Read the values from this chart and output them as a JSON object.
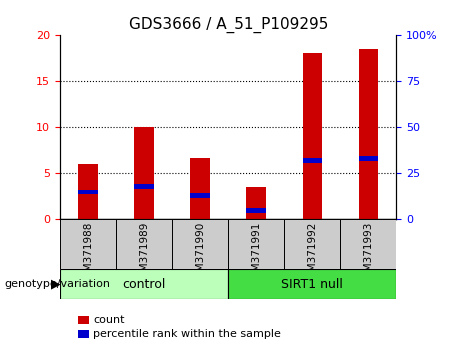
{
  "title": "GDS3666 / A_51_P109295",
  "samples": [
    "GSM371988",
    "GSM371989",
    "GSM371990",
    "GSM371991",
    "GSM371992",
    "GSM371993"
  ],
  "count_values": [
    6.0,
    10.1,
    6.7,
    3.5,
    18.1,
    18.5
  ],
  "percentile_values": [
    15,
    18,
    13,
    5,
    32,
    33
  ],
  "left_ylim": [
    0,
    20
  ],
  "right_ylim": [
    0,
    100
  ],
  "left_yticks": [
    0,
    5,
    10,
    15,
    20
  ],
  "right_yticks": [
    0,
    25,
    50,
    75,
    100
  ],
  "right_yticklabels": [
    "0",
    "25",
    "50",
    "75",
    "100%"
  ],
  "bar_color": "#cc0000",
  "percentile_color": "#0000cc",
  "bar_width": 0.35,
  "groups": [
    {
      "label": "control",
      "start": 0,
      "end": 3,
      "color": "#bbffbb"
    },
    {
      "label": "SIRT1 null",
      "start": 3,
      "end": 6,
      "color": "#44dd44"
    }
  ],
  "group_label": "genotype/variation",
  "legend_count_label": "count",
  "legend_percentile_label": "percentile rank within the sample",
  "tick_label_area_color": "#cccccc",
  "title_fontsize": 11,
  "tick_fontsize": 8
}
